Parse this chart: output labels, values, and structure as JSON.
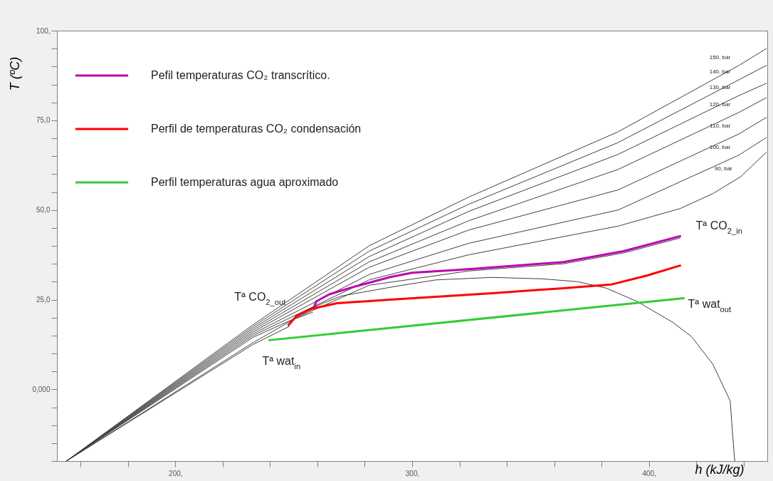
{
  "chart_data": {
    "type": "line",
    "xlabel": "h (kJ/kg)",
    "ylabel": "T (ºC)",
    "xlim": [
      150,
      450
    ],
    "ylim": [
      -20,
      100
    ],
    "xticks": [
      {
        "value": 160,
        "label": null
      },
      {
        "value": 180,
        "label": null
      },
      {
        "value": 200,
        "label": "200,"
      },
      {
        "value": 220,
        "label": null
      },
      {
        "value": 240,
        "label": null
      },
      {
        "value": 260,
        "label": null
      },
      {
        "value": 280,
        "label": null
      },
      {
        "value": 300,
        "label": "300,"
      },
      {
        "value": 320,
        "label": null
      },
      {
        "value": 340,
        "label": null
      },
      {
        "value": 360,
        "label": null
      },
      {
        "value": 380,
        "label": null
      },
      {
        "value": 400,
        "label": "400,"
      },
      {
        "value": 420,
        "label": null
      },
      {
        "value": 440,
        "label": null
      }
    ],
    "yticks": [
      {
        "value": -20,
        "label": null
      },
      {
        "value": -15,
        "label": null
      },
      {
        "value": -10,
        "label": null
      },
      {
        "value": -5,
        "label": null
      },
      {
        "value": 0,
        "label": "0,000"
      },
      {
        "value": 5,
        "label": null
      },
      {
        "value": 10,
        "label": null
      },
      {
        "value": 15,
        "label": null
      },
      {
        "value": 20,
        "label": null
      },
      {
        "value": 25,
        "label": "25,0"
      },
      {
        "value": 30,
        "label": null
      },
      {
        "value": 35,
        "label": null
      },
      {
        "value": 40,
        "label": null
      },
      {
        "value": 45,
        "label": null
      },
      {
        "value": 50,
        "label": "50,0"
      },
      {
        "value": 55,
        "label": null
      },
      {
        "value": 60,
        "label": null
      },
      {
        "value": 65,
        "label": null
      },
      {
        "value": 70,
        "label": null
      },
      {
        "value": 75,
        "label": "75,0"
      },
      {
        "value": 80,
        "label": null
      },
      {
        "value": 85,
        "label": null
      },
      {
        "value": 90,
        "label": null
      },
      {
        "value": 95,
        "label": null
      },
      {
        "value": 100,
        "label": "100,"
      }
    ],
    "grid": false,
    "legend": "top left",
    "marker": "none",
    "line_style": "solid",
    "series": [
      {
        "color": "#404040",
        "x": [
          154,
          232.8,
          281.8,
          323.9,
          387,
          438,
          449.6
        ],
        "values": [
          -20,
          18,
          40,
          53.6,
          71.8,
          90.3,
          95
        ]
      },
      {
        "color": "#404040",
        "x": [
          154,
          232.8,
          281.8,
          323.9,
          387,
          438,
          449.6
        ],
        "values": [
          -20,
          17.5,
          38.5,
          51.6,
          68.8,
          86.3,
          90.3
        ]
      },
      {
        "color": "#404040",
        "x": [
          154,
          232.8,
          281.8,
          323.9,
          387,
          438,
          449.6
        ],
        "values": [
          -20,
          17,
          37,
          49.6,
          65.5,
          81.9,
          85.3
        ]
      },
      {
        "color": "#404040",
        "x": [
          154,
          232.8,
          281.8,
          323.9,
          387,
          438,
          449.6
        ],
        "values": [
          -20,
          16.5,
          35.5,
          47,
          61.3,
          77.2,
          81.3
        ]
      },
      {
        "color": "#404040",
        "x": [
          154,
          232.8,
          281.8,
          323.9,
          387,
          438,
          449.6
        ],
        "values": [
          -20,
          16,
          34,
          44.4,
          55.6,
          71.2,
          75.8
        ]
      },
      {
        "color": "#404040",
        "x": [
          154,
          232.8,
          281.8,
          323.9,
          387,
          438,
          449.6
        ],
        "values": [
          -20,
          15.5,
          32,
          40.7,
          50,
          65.3,
          70.2
        ]
      },
      {
        "color": "#404040",
        "x": [
          154,
          232.8,
          281.8,
          323.9,
          387,
          413.2,
          427.1,
          438.8,
          449.6
        ],
        "values": [
          -20,
          15,
          30.5,
          37.5,
          45.5,
          50.4,
          54.6,
          59.3,
          66.1
        ]
      },
      {
        "color": "#404040",
        "x": [
          154,
          232.8,
          258,
          281.8,
          323.9,
          363.9,
          389.2,
          413.2
        ],
        "values": [
          -20,
          14.5,
          22,
          29,
          33,
          35,
          38,
          42.2
        ]
      },
      {
        "color": "#404040",
        "x": [
          154,
          232.8,
          250,
          258
        ],
        "values": [
          -20,
          13,
          19.5,
          21.5
        ]
      },
      {
        "color": "#404040",
        "x": [
          154,
          232.8,
          248
        ],
        "values": [
          -20,
          12.5,
          17.5
        ]
      },
      {
        "color": "#404040",
        "x": [
          255,
          270,
          293.8,
          310,
          333.8,
          355,
          370,
          382,
          395,
          410,
          418,
          427,
          434.3,
          436.1,
          436.3
        ],
        "values": [
          22,
          26,
          28.8,
          30.5,
          31.2,
          30.8,
          30,
          28.2,
          24.5,
          18.7,
          14.7,
          7,
          -3.2,
          -19,
          -20
        ]
      },
      {
        "name": "Pefil temperaturas CO₂ transcrítico.",
        "color": "#c000b0",
        "x": [
          258.6,
          259.5,
          265,
          275,
          290.8,
          300,
          323.9,
          363.9,
          389.2,
          413.2
        ],
        "values": [
          22.8,
          24.5,
          26.5,
          28.5,
          31.3,
          32.5,
          33.5,
          35.5,
          38.5,
          42.7
        ]
      },
      {
        "name": "Perfil de temperaturas CO₂ condensación",
        "color": "#ff0000",
        "x": [
          247.8,
          251.1,
          257.4,
          268.3,
          290.8,
          333.8,
          363.9,
          384,
          399.1,
          413.2
        ],
        "values": [
          17.9,
          20.4,
          22.4,
          24,
          25,
          26.8,
          28.2,
          29.2,
          31.7,
          34.5
        ]
      },
      {
        "name": "Perfil temperaturas agua aproximado",
        "color": "#33cc33",
        "x": [
          239.7,
          414.7
        ],
        "values": [
          13.7,
          25.4
        ]
      }
    ],
    "annotations": [
      {
        "text": "Tª CO$_{2_in}$",
        "x": 413.2,
        "y": 42.7
      },
      {
        "text": "Tª CO$_{2_out}$",
        "x": 249,
        "y": 24.5
      },
      {
        "text": "Tª wat$_{in}$",
        "x": 239.7,
        "y": 13.7
      },
      {
        "text": "Tª wat$_{out}$",
        "x": 414.7,
        "y": 25.4
      },
      {
        "text": "150, bar",
        "x": 438,
        "y": 90.3
      },
      {
        "text": "140, bar",
        "x": 438,
        "y": 86.3
      },
      {
        "text": "130, bar",
        "x": 438,
        "y": 81.9
      },
      {
        "text": "120, bar",
        "x": 438,
        "y": 77.2
      },
      {
        "text": "110, bar",
        "x": 438,
        "y": 71.2
      },
      {
        "text": "100, bar",
        "x": 438,
        "y": 65.3
      },
      {
        "text": "90, bar",
        "x": 438.8,
        "y": 59.3
      }
    ]
  }
}
